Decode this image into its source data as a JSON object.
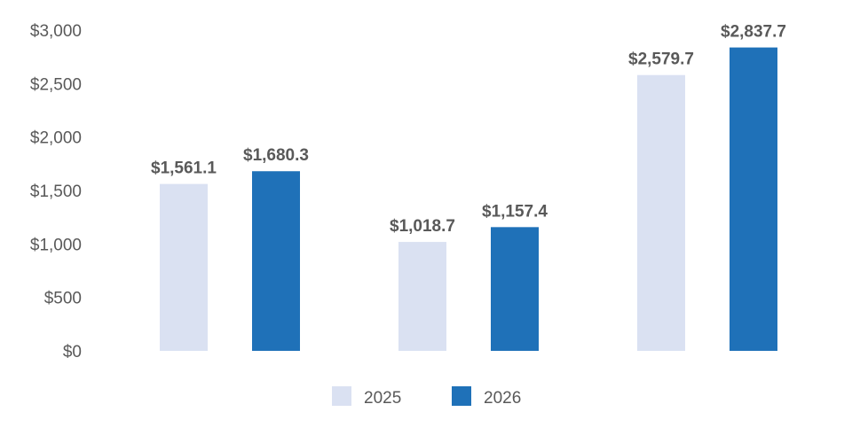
{
  "chart_data": {
    "type": "bar",
    "categories": [
      "",
      "",
      ""
    ],
    "series": [
      {
        "name": "2025",
        "color": "#dae1f2",
        "values": [
          1561.1,
          1018.7,
          2579.7
        ],
        "labels": [
          "$1,561.1",
          "$1,018.7",
          "$2,579.7"
        ]
      },
      {
        "name": "2026",
        "color": "#1f71b8",
        "values": [
          1680.3,
          1157.4,
          2837.7
        ],
        "labels": [
          "$1,680.3",
          "$1,157.4",
          "$2,837.7"
        ]
      }
    ],
    "yticks": [
      0,
      500,
      1000,
      1500,
      2000,
      2500,
      3000
    ],
    "ytick_labels": [
      "$0",
      "$500",
      "$1,000",
      "$1,500",
      "$2,000",
      "$2,500",
      "$3,000"
    ],
    "ylim": [
      0,
      3000
    ],
    "title": "",
    "xlabel": "",
    "ylabel": "",
    "grid": false,
    "legend_position": "bottom"
  }
}
